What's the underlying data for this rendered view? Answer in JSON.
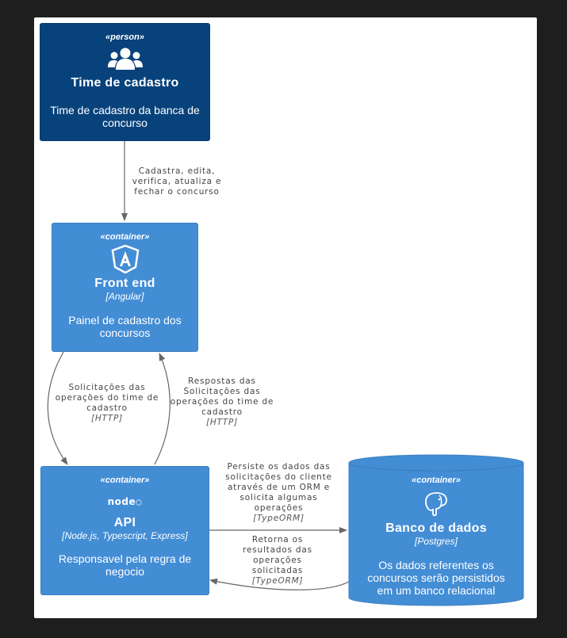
{
  "diagram": {
    "nodes": {
      "team": {
        "stereotype": "«person»",
        "title": "Time de cadastro",
        "description": "Time de cadastro da banca de concurso",
        "icon": "users-icon",
        "color": "#08427b"
      },
      "frontend": {
        "stereotype": "«container»",
        "title": "Front end",
        "technology": "[Angular]",
        "description": "Painel de cadastro dos concursos",
        "icon": "angular-icon",
        "color": "#438dd5"
      },
      "api": {
        "stereotype": "«container»",
        "title": "API",
        "technology": "[Node.js, Typescript, Express]",
        "description": "Responsavel pela regra de negocio",
        "icon": "nodejs-icon",
        "icon_text": "node",
        "color": "#438dd5"
      },
      "db": {
        "stereotype": "«container»",
        "title": "Banco de dados",
        "technology": "[Postgres]",
        "description": "Os dados referentes os concursos serão persistidos em um banco relacional",
        "icon": "postgres-icon",
        "color": "#438dd5"
      }
    },
    "edges": {
      "team_to_frontend": {
        "label": "Cadastra, edita, verifica, atualiza e fechar o concurso"
      },
      "frontend_to_api": {
        "label": "Solicitações das operações do time de cadastro",
        "technology": "[HTTP]"
      },
      "api_to_frontend": {
        "label": "Respostas das Solicitações das operações do time de cadastro",
        "technology": "[HTTP]"
      },
      "api_to_db": {
        "label": "Persiste os dados das solicitações do cliente através de um ORM e solicita algumas operações",
        "technology": "[TypeORM]"
      },
      "db_to_api": {
        "label": "Retorna os resultados das operações solicitadas",
        "technology": "[TypeORM]"
      }
    }
  }
}
